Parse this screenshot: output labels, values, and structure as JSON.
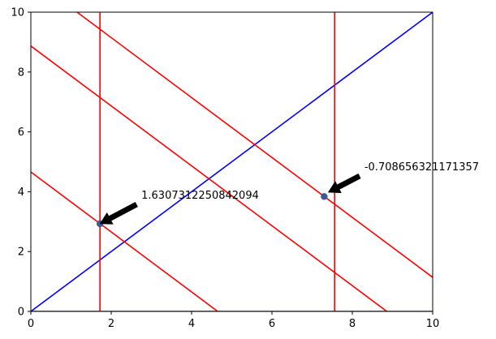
{
  "chart_data": {
    "type": "line",
    "title": "",
    "xlabel": "",
    "ylabel": "",
    "xlim": [
      0,
      10
    ],
    "ylim": [
      0,
      10
    ],
    "xticks": [
      0,
      2,
      4,
      6,
      8,
      10
    ],
    "yticks": [
      0,
      2,
      4,
      6,
      8,
      10
    ],
    "grid": false,
    "series": [
      {
        "color": "#0000ff",
        "x": [
          0,
          10
        ],
        "y": [
          0,
          10
        ]
      },
      {
        "color": "#0000ff",
        "x": [
          0,
          10
        ],
        "y": [
          0,
          0
        ]
      },
      {
        "color": "#ff0000",
        "x": [
          1.72,
          1.72
        ],
        "y": [
          0,
          10
        ]
      },
      {
        "color": "#ff0000",
        "x": [
          7.56,
          7.56
        ],
        "y": [
          0,
          10
        ]
      },
      {
        "color": "#ff0000",
        "x": [
          1.15,
          10
        ],
        "y": [
          10,
          1.14
        ]
      },
      {
        "color": "#ff0000",
        "x": [
          0,
          8.86
        ],
        "y": [
          8.87,
          0
        ]
      },
      {
        "color": "#ff0000",
        "x": [
          0,
          4.65
        ],
        "y": [
          4.66,
          0
        ]
      }
    ],
    "points": [
      {
        "x": 1.72,
        "y": 2.93,
        "color": "#3a5a9a"
      },
      {
        "x": 7.3,
        "y": 3.84,
        "color": "#3a5a9a"
      }
    ],
    "annotations": [
      {
        "text": "1.6307312250842094",
        "point": [
          1.72,
          2.93
        ],
        "text_pos": [
          2.75,
          3.9
        ]
      },
      {
        "text": "-0.708656321171357",
        "point": [
          7.4,
          3.98
        ],
        "text_pos": [
          8.3,
          4.85
        ]
      }
    ]
  }
}
